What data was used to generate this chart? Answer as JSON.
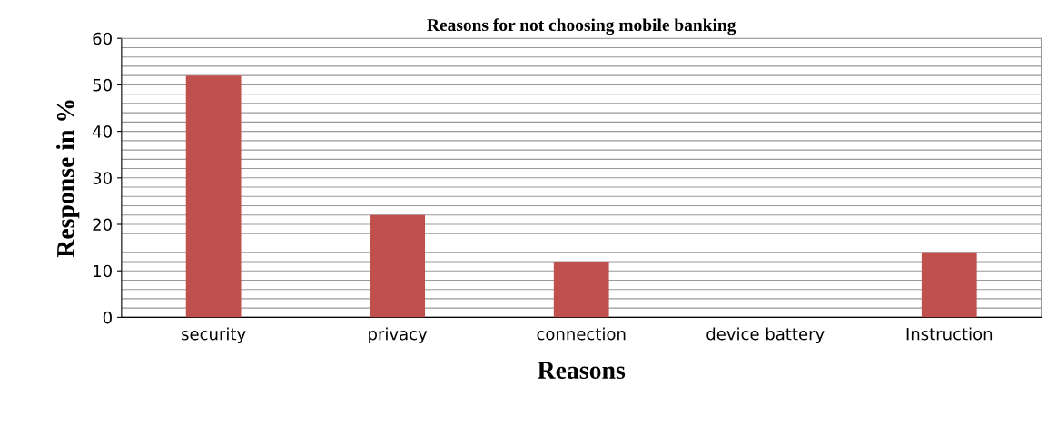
{
  "chart_data": {
    "type": "bar",
    "title": "Reasons for not choosing mobile banking",
    "xlabel": "Reasons",
    "ylabel": "Response in %",
    "categories": [
      "security",
      "privacy",
      "connection",
      "device battery",
      "Instruction"
    ],
    "values": [
      52,
      22,
      12,
      0,
      14
    ],
    "color": "#c0504d",
    "ylim": [
      0,
      60
    ],
    "yticks": [
      0,
      {
        "value": 2,
        "label": null
      },
      {
        "value": 4,
        "label": null
      },
      {
        "value": 6,
        "label": null
      },
      {
        "value": 8,
        "label": null
      },
      10,
      {
        "value": 12,
        "label": null
      },
      {
        "value": 14,
        "label": null
      },
      {
        "value": 16,
        "label": null
      },
      {
        "value": 18,
        "label": null
      },
      20,
      {
        "value": 22,
        "label": null
      },
      {
        "value": 24,
        "label": null
      },
      {
        "value": 26,
        "label": null
      },
      {
        "value": 28,
        "label": null
      },
      30,
      {
        "value": 32,
        "label": null
      },
      {
        "value": 34,
        "label": null
      },
      {
        "value": 36,
        "label": null
      },
      {
        "value": 38,
        "label": null
      },
      40,
      {
        "value": 42,
        "label": null
      },
      {
        "value": 44,
        "label": null
      },
      {
        "value": 46,
        "label": null
      },
      {
        "value": 48,
        "label": null
      },
      50,
      {
        "value": 52,
        "label": null
      },
      {
        "value": 54,
        "label": null
      },
      {
        "value": 56,
        "label": null
      },
      {
        "value": 58,
        "label": null
      },
      60
    ],
    "grid": "y",
    "legend": false
  }
}
